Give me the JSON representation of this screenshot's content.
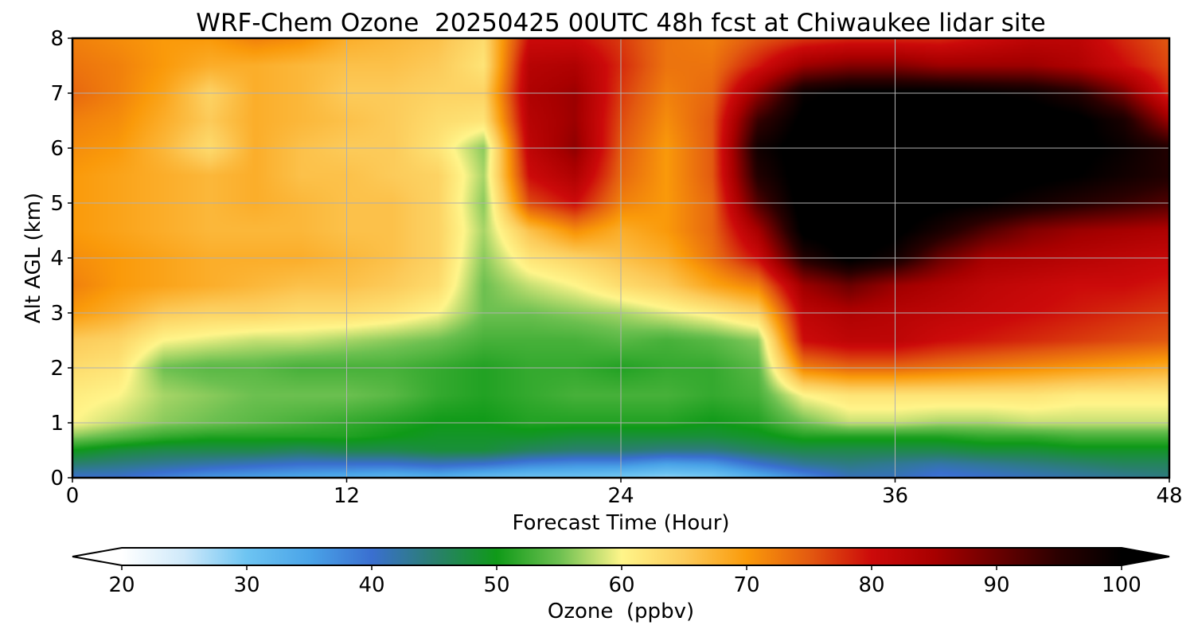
{
  "chart_data": {
    "type": "heatmap",
    "title": "WRF-Chem Ozone  20250425 00UTC 48h fcst at Chiwaukee lidar site",
    "xlabel": "Forecast Time (Hour)",
    "ylabel": "Alt AGL (km)",
    "xlim": [
      0,
      48
    ],
    "ylim": [
      0,
      8
    ],
    "x_ticks": [
      "0",
      "12",
      "24",
      "36",
      "48"
    ],
    "y_ticks": [
      "0",
      "1",
      "2",
      "3",
      "4",
      "5",
      "6",
      "7",
      "8"
    ],
    "grid": true,
    "colorbar": {
      "label": "Ozone  (ppbv)",
      "min": 20,
      "max": 100,
      "extend": "both",
      "ticks": [
        "20",
        "30",
        "40",
        "50",
        "60",
        "70",
        "80",
        "90",
        "100"
      ],
      "stops": [
        [
          20,
          "#ffffff"
        ],
        [
          25,
          "#cfe9fa"
        ],
        [
          30,
          "#6dc4f2"
        ],
        [
          35,
          "#4aa4e8"
        ],
        [
          40,
          "#3a6fd0"
        ],
        [
          45,
          "#2a7f6e"
        ],
        [
          50,
          "#0f9a18"
        ],
        [
          55,
          "#6cc050"
        ],
        [
          60,
          "#fff58a"
        ],
        [
          65,
          "#fccb5a"
        ],
        [
          70,
          "#fa9a0a"
        ],
        [
          75,
          "#e35a10"
        ],
        [
          80,
          "#cc0a0a"
        ],
        [
          85,
          "#a80000"
        ],
        [
          90,
          "#6a0000"
        ],
        [
          95,
          "#2a0000"
        ],
        [
          100,
          "#000000"
        ]
      ]
    },
    "x": [
      0,
      2,
      4,
      6,
      8,
      10,
      12,
      14,
      16,
      18,
      20,
      22,
      24,
      26,
      28,
      30,
      32,
      34,
      36,
      38,
      40,
      42,
      44,
      46,
      48
    ],
    "y": [
      0,
      0.25,
      0.5,
      0.75,
      1,
      1.5,
      2,
      2.5,
      3,
      3.5,
      4,
      4.5,
      5,
      5.5,
      6,
      6.5,
      7,
      7.5,
      8
    ],
    "values": [
      [
        40,
        40,
        38,
        36,
        35,
        34,
        33,
        32,
        33,
        31,
        30,
        30,
        29,
        28,
        29,
        33,
        37,
        41,
        41,
        39,
        40,
        41,
        42,
        43,
        44
      ],
      [
        45,
        44,
        43,
        42,
        41,
        40,
        40,
        40,
        41,
        40,
        38,
        37,
        37,
        35,
        36,
        40,
        43,
        44,
        43,
        42,
        43,
        44,
        45,
        46,
        46
      ],
      [
        50,
        48,
        47,
        47,
        47,
        46,
        47,
        47,
        48,
        48,
        46,
        45,
        45,
        44,
        44,
        46,
        47,
        47,
        47,
        47,
        48,
        48,
        49,
        49,
        49
      ],
      [
        56,
        54,
        52,
        51,
        51,
        51,
        51,
        50,
        49,
        49,
        49,
        48,
        48,
        48,
        48,
        49,
        51,
        51,
        51,
        51,
        52,
        52,
        53,
        53,
        53
      ],
      [
        60,
        58,
        56,
        55,
        54,
        53,
        52,
        51,
        50,
        50,
        51,
        51,
        51,
        51,
        50,
        51,
        55,
        58,
        58,
        57,
        57,
        58,
        58,
        58,
        58
      ],
      [
        61,
        60,
        57,
        56,
        55,
        55,
        55,
        54,
        52,
        51,
        52,
        53,
        53,
        53,
        52,
        53,
        60,
        62,
        62,
        62,
        62,
        62,
        61,
        61,
        61
      ],
      [
        63,
        62,
        55,
        54,
        54,
        53,
        53,
        53,
        52,
        51,
        52,
        52,
        51,
        52,
        52,
        54,
        72,
        74,
        74,
        73,
        72,
        71,
        70,
        69,
        68
      ],
      [
        65,
        64,
        60,
        59,
        58,
        58,
        57,
        56,
        55,
        53,
        53,
        53,
        54,
        53,
        54,
        56,
        80,
        82,
        82,
        80,
        79,
        78,
        77,
        76,
        75
      ],
      [
        70,
        68,
        65,
        64,
        64,
        63,
        63,
        62,
        60,
        55,
        55,
        56,
        57,
        59,
        61,
        64,
        82,
        84,
        83,
        82,
        81,
        80,
        79,
        78,
        77
      ],
      [
        72,
        70,
        69,
        68,
        67,
        66,
        66,
        65,
        63,
        55,
        58,
        60,
        63,
        65,
        69,
        72,
        86,
        90,
        86,
        84,
        82,
        81,
        80,
        80,
        79
      ],
      [
        71,
        70,
        69,
        68,
        68,
        68,
        67,
        66,
        64,
        56,
        62,
        64,
        66,
        68,
        73,
        80,
        96,
        101,
        98,
        90,
        85,
        84,
        83,
        82,
        81
      ],
      [
        70,
        69,
        68,
        67,
        67,
        67,
        66,
        66,
        64,
        57,
        66,
        71,
        68,
        70,
        74,
        85,
        101,
        102,
        101,
        97,
        92,
        88,
        86,
        85,
        84
      ],
      [
        70,
        69,
        68,
        67,
        68,
        67,
        66,
        66,
        64,
        56,
        76,
        80,
        72,
        70,
        74,
        92,
        102,
        102,
        102,
        101,
        100,
        98,
        96,
        94,
        92
      ],
      [
        70,
        69,
        68,
        67,
        68,
        66,
        66,
        65,
        64,
        57,
        80,
        84,
        74,
        70,
        75,
        96,
        102,
        102,
        102,
        102,
        102,
        101,
        100,
        98,
        96
      ],
      [
        71,
        70,
        67,
        63,
        68,
        66,
        65,
        65,
        62,
        56,
        82,
        87,
        75,
        70,
        75,
        98,
        102,
        102,
        102,
        102,
        102,
        102,
        101,
        99,
        96
      ],
      [
        72,
        71,
        68,
        65,
        68,
        67,
        66,
        65,
        63,
        62,
        83,
        86,
        76,
        71,
        75,
        94,
        101,
        102,
        102,
        102,
        102,
        102,
        101,
        97,
        86
      ],
      [
        74,
        72,
        69,
        64,
        68,
        67,
        65,
        65,
        64,
        64,
        84,
        86,
        77,
        72,
        74,
        87,
        99,
        101,
        101,
        101,
        100,
        99,
        96,
        89,
        78
      ],
      [
        73,
        72,
        70,
        68,
        68,
        67,
        66,
        66,
        65,
        62,
        83,
        84,
        78,
        73,
        73,
        79,
        86,
        88,
        88,
        86,
        86,
        86,
        84,
        80,
        76
      ],
      [
        72,
        71,
        70,
        70,
        72,
        71,
        68,
        67,
        66,
        63,
        80,
        80,
        77,
        73,
        72,
        75,
        77,
        78,
        78,
        78,
        80,
        82,
        82,
        78,
        75
      ]
    ]
  }
}
